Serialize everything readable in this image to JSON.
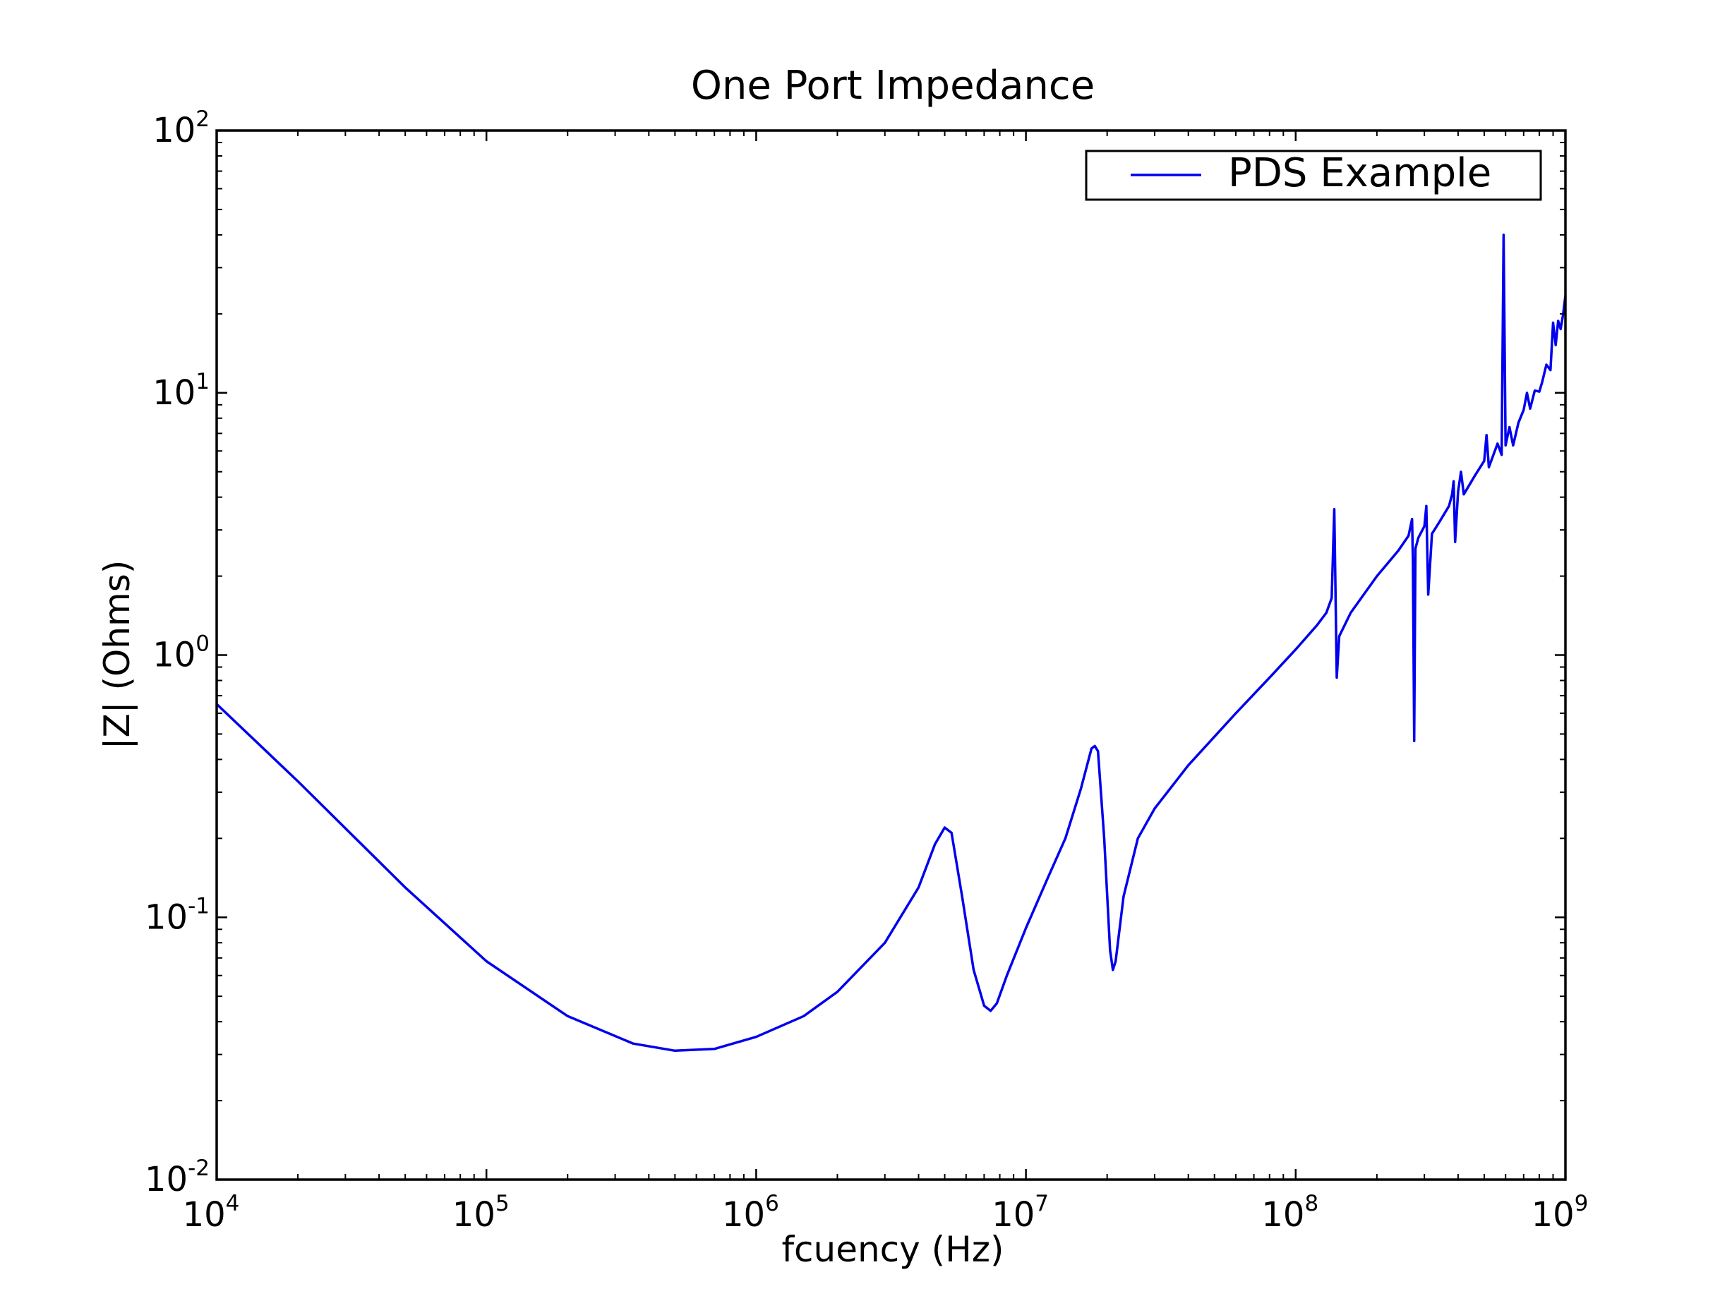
{
  "chart_data": {
    "type": "line",
    "title": "One Port Impedance",
    "xlabel": "fcuency (Hz)",
    "ylabel": "|Z| (Ohms)",
    "x_scale": "log",
    "y_scale": "log",
    "xlim": [
      10000,
      1000000000
    ],
    "ylim": [
      0.01,
      100
    ],
    "grid": false,
    "legend": "top-right",
    "x_ticks": [
      {
        "base": "10",
        "exp": "4",
        "value": 10000
      },
      {
        "base": "10",
        "exp": "5",
        "value": 100000
      },
      {
        "base": "10",
        "exp": "6",
        "value": 1000000
      },
      {
        "base": "10",
        "exp": "7",
        "value": 10000000
      },
      {
        "base": "10",
        "exp": "8",
        "value": 100000000
      },
      {
        "base": "10",
        "exp": "9",
        "value": 1000000000
      }
    ],
    "y_ticks": [
      {
        "base": "10",
        "exp": "-2",
        "value": 0.01
      },
      {
        "base": "10",
        "exp": "-1",
        "value": 0.1
      },
      {
        "base": "10",
        "exp": "0",
        "value": 1
      },
      {
        "base": "10",
        "exp": "1",
        "value": 10
      },
      {
        "base": "10",
        "exp": "2",
        "value": 100
      }
    ],
    "series": [
      {
        "name": "PDS Example",
        "color": "#0000ee",
        "points": [
          [
            10000,
            0.65
          ],
          [
            20000,
            0.33
          ],
          [
            50000,
            0.13
          ],
          [
            100000,
            0.068
          ],
          [
            200000,
            0.042
          ],
          [
            350000,
            0.033
          ],
          [
            500000,
            0.031
          ],
          [
            700000,
            0.0315
          ],
          [
            1000000,
            0.035
          ],
          [
            1500000,
            0.042
          ],
          [
            2000000,
            0.052
          ],
          [
            3000000,
            0.08
          ],
          [
            4000000,
            0.13
          ],
          [
            4600000,
            0.19
          ],
          [
            5000000,
            0.22
          ],
          [
            5300000,
            0.21
          ],
          [
            5800000,
            0.12
          ],
          [
            6400000,
            0.063
          ],
          [
            7000000,
            0.046
          ],
          [
            7400000,
            0.044
          ],
          [
            7800000,
            0.047
          ],
          [
            8500000,
            0.06
          ],
          [
            10000000,
            0.091
          ],
          [
            12000000,
            0.14
          ],
          [
            14000000,
            0.2
          ],
          [
            16000000,
            0.31
          ],
          [
            17500000,
            0.44
          ],
          [
            18000000,
            0.45
          ],
          [
            18500000,
            0.43
          ],
          [
            19500000,
            0.2
          ],
          [
            20500000,
            0.075
          ],
          [
            21000000,
            0.063
          ],
          [
            21500000,
            0.068
          ],
          [
            23000000,
            0.12
          ],
          [
            26000000,
            0.2
          ],
          [
            30000000,
            0.26
          ],
          [
            40000000,
            0.38
          ],
          [
            60000000,
            0.6
          ],
          [
            80000000,
            0.82
          ],
          [
            100000000,
            1.05
          ],
          [
            120000000,
            1.3
          ],
          [
            130000000,
            1.45
          ],
          [
            136000000,
            1.65
          ],
          [
            139000000,
            3.6
          ],
          [
            142000000,
            0.82
          ],
          [
            145000000,
            1.18
          ],
          [
            160000000,
            1.45
          ],
          [
            200000000,
            2.0
          ],
          [
            240000000,
            2.5
          ],
          [
            262000000,
            2.85
          ],
          [
            270000000,
            3.3
          ],
          [
            272000000,
            2.3
          ],
          [
            275000000,
            0.47
          ],
          [
            278000000,
            2.55
          ],
          [
            285000000,
            2.8
          ],
          [
            300000000,
            3.1
          ],
          [
            305000000,
            3.7
          ],
          [
            310000000,
            1.7
          ],
          [
            320000000,
            2.9
          ],
          [
            340000000,
            3.2
          ],
          [
            370000000,
            3.7
          ],
          [
            380000000,
            4.1
          ],
          [
            385000000,
            4.6
          ],
          [
            390000000,
            2.7
          ],
          [
            400000000,
            4.2
          ],
          [
            410000000,
            5.0
          ],
          [
            420000000,
            4.1
          ],
          [
            460000000,
            4.8
          ],
          [
            500000000,
            5.5
          ],
          [
            510000000,
            6.9
          ],
          [
            520000000,
            5.2
          ],
          [
            560000000,
            6.4
          ],
          [
            580000000,
            5.8
          ],
          [
            590000000,
            40
          ],
          [
            600000000,
            6.3
          ],
          [
            620000000,
            7.4
          ],
          [
            640000000,
            6.3
          ],
          [
            670000000,
            7.7
          ],
          [
            700000000,
            8.6
          ],
          [
            720000000,
            10.0
          ],
          [
            740000000,
            8.7
          ],
          [
            770000000,
            10.2
          ],
          [
            800000000,
            10.1
          ],
          [
            820000000,
            11.0
          ],
          [
            850000000,
            12.8
          ],
          [
            880000000,
            12.2
          ],
          [
            900000000,
            18.5
          ],
          [
            920000000,
            15.2
          ],
          [
            940000000,
            18.8
          ],
          [
            960000000,
            17.5
          ],
          [
            980000000,
            19.8
          ],
          [
            1000000000,
            23.5
          ]
        ]
      }
    ]
  }
}
